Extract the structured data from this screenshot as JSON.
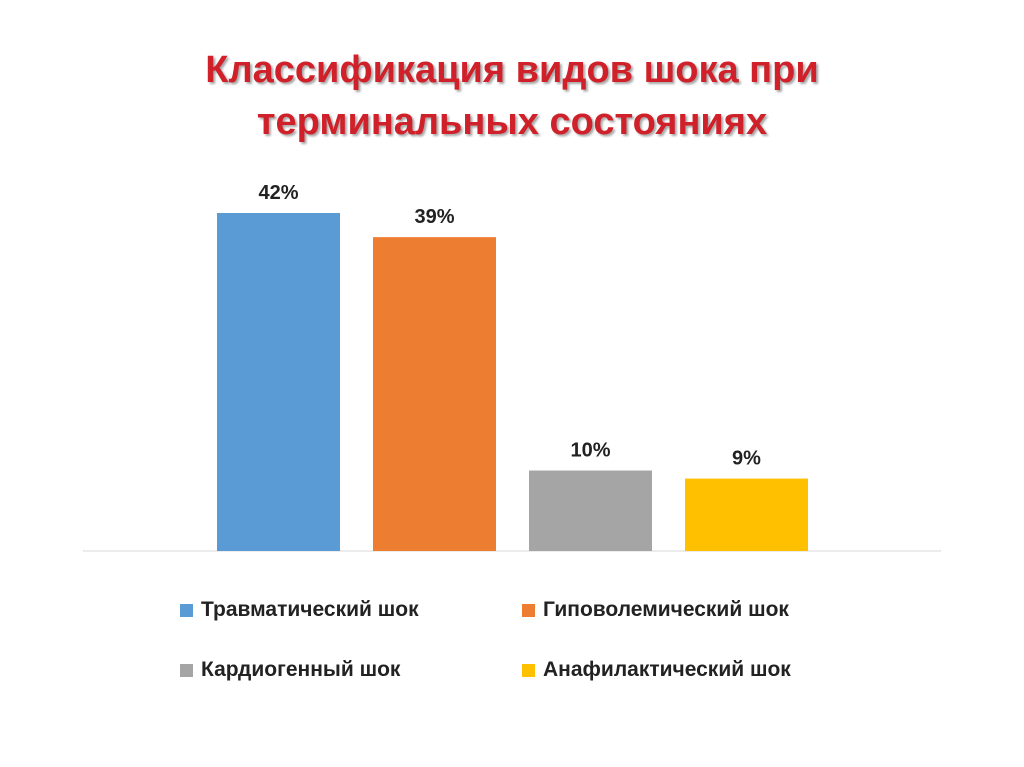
{
  "title_line1": "Классификация видов шока при",
  "title_line2": "терминальных состояниях",
  "chart_data": {
    "type": "bar",
    "title": "Классификация видов шока при терминальных состояниях",
    "categories": [
      "Травматический шок",
      "Гиповолемический шок",
      "Кардиогенный шок",
      "Анафилактический шок"
    ],
    "values": [
      42,
      39,
      10,
      9
    ],
    "data_labels": [
      "42%",
      "39%",
      "10%",
      "9%"
    ],
    "colors": [
      "#5b9bd5",
      "#ed7d31",
      "#a5a5a5",
      "#ffc000"
    ],
    "ylim": [
      0,
      42
    ],
    "grid": false,
    "legend_position": "bottom"
  },
  "legend": [
    {
      "label": "Травматический шок",
      "color": "#5b9bd5"
    },
    {
      "label": "Гиповолемический шок",
      "color": "#ed7d31"
    },
    {
      "label": "Кардиогенный шок",
      "color": "#a5a5a5"
    },
    {
      "label": "Анафилактический шок",
      "color": "#ffc000"
    }
  ]
}
